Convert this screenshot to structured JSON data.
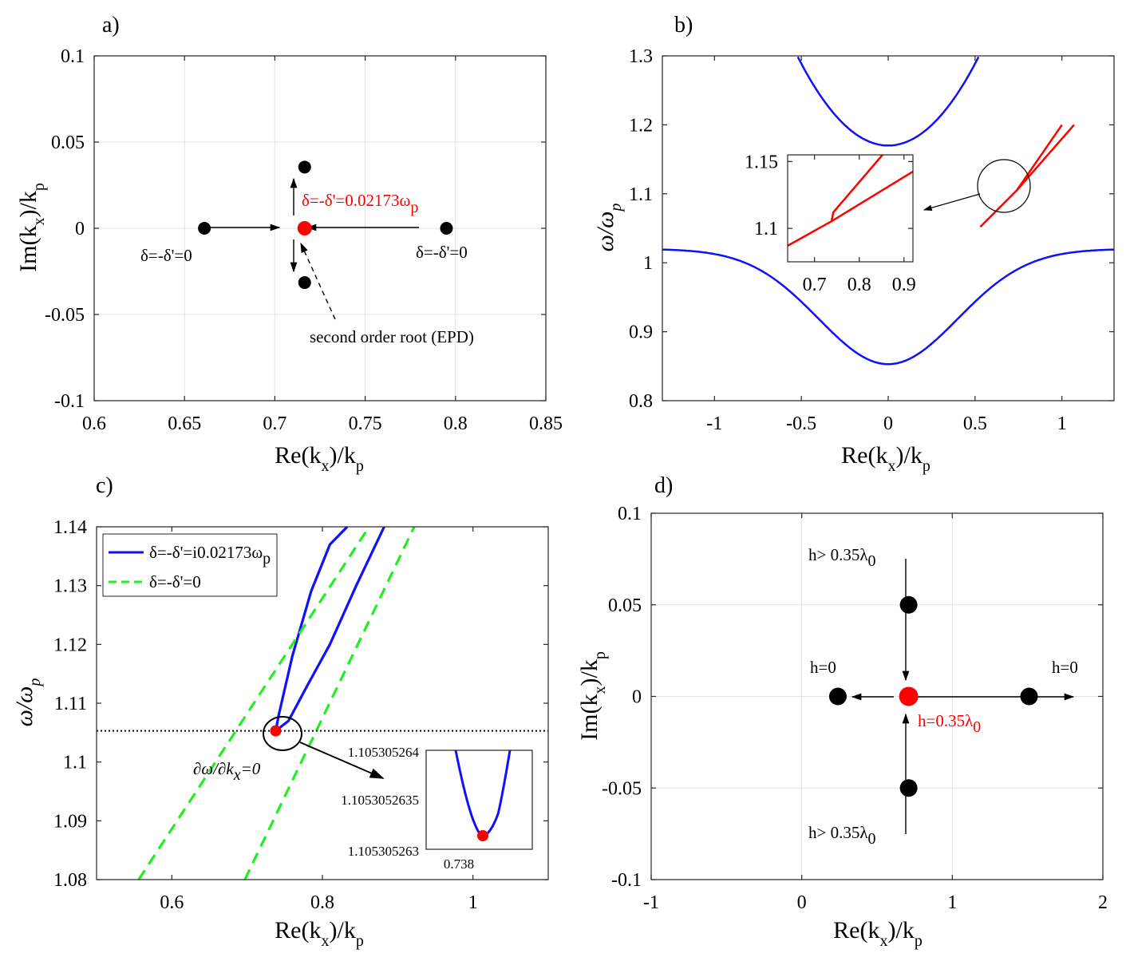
{
  "chart_data": [
    {
      "panel": "a)",
      "type": "scatter",
      "xlabel": {
        "main": "Re(k",
        "sub1": "x",
        "mid": ")/k",
        "sub2": "p"
      },
      "ylabel": {
        "main": "Im(k",
        "sub1": "x",
        "mid": ")/k",
        "sub2": "p"
      },
      "xlim": [
        0.6,
        0.85
      ],
      "ylim": [
        -0.1,
        0.1
      ],
      "xticks": [
        "0.6",
        "0.65",
        "0.7",
        "0.75",
        "0.8",
        "0.85"
      ],
      "yticks": [
        "0.1",
        "0.05",
        "0",
        "-0.05",
        "-0.1"
      ],
      "grid": true,
      "points": [
        {
          "x": 0.661,
          "y": 0.0,
          "color": "#000000"
        },
        {
          "x": 0.795,
          "y": 0.0,
          "color": "#000000"
        },
        {
          "x": 0.7165,
          "y": 0.0,
          "color": "#ff0000"
        },
        {
          "x": 0.7165,
          "y": 0.0355,
          "color": "#000000"
        },
        {
          "x": 0.7165,
          "y": -0.0315,
          "color": "#000000"
        }
      ],
      "annotations": [
        {
          "text": "δ=-δ'=0",
          "color": "#000000"
        },
        {
          "text": "δ=-δ'=0",
          "color": "#000000"
        },
        {
          "text": "δ=-δ'=0.02173ω",
          "sub": "p",
          "color": "#ff0000"
        },
        {
          "text": "second order root (EPD)",
          "color": "#000000"
        }
      ]
    },
    {
      "panel": "b)",
      "type": "line",
      "xlabel": {
        "main": "Re(k",
        "sub1": "x",
        "mid": ")/k",
        "sub2": "p"
      },
      "ylabel": {
        "main": "ω/ω",
        "sub1": "p"
      },
      "xlim": [
        -1.3,
        1.3
      ],
      "ylim": [
        0.8,
        1.3
      ],
      "xticks": [
        "-1",
        "-0.5",
        "0",
        "0.5",
        "1"
      ],
      "yticks": [
        "1.3",
        "1.2",
        "1.1",
        "1",
        "0.9",
        "0.8"
      ],
      "grid": false,
      "series": [
        {
          "name": "upper band",
          "color": "#1010ff",
          "formula": "1.17 + 0.475*x^2"
        },
        {
          "name": "lower band",
          "color": "#1010ff",
          "formula": "0.853 + 0.167*(1 - exp(-x^2/0.32))"
        },
        {
          "name": "red branch 1",
          "color": "#ff0000",
          "x": [
            0.53,
            0.74,
            1.07
          ],
          "y": [
            1.052,
            1.105,
            1.2
          ]
        },
        {
          "name": "red branch 2",
          "color": "#ff0000",
          "x": [
            0.74,
            1.0
          ],
          "y": [
            1.105,
            1.2
          ]
        }
      ],
      "inset": {
        "xlim": [
          0.64,
          0.92
        ],
        "ylim": [
          1.075,
          1.155
        ],
        "xticks": [
          "0.7",
          "0.8",
          "0.9"
        ],
        "yticks": [
          "1.15",
          "1.1"
        ],
        "series": [
          {
            "color": "#ff0000",
            "x": [
              0.64,
              0.738,
              0.92
            ],
            "y": [
              1.087,
              1.1053,
              1.1425
            ]
          },
          {
            "color": "#ff0000",
            "x": [
              0.738,
              0.742,
              0.852
            ],
            "y": [
              1.1053,
              1.112,
              1.155
            ]
          }
        ]
      }
    },
    {
      "panel": "c)",
      "type": "line",
      "xlabel": {
        "main": "Re(k",
        "sub1": "x",
        "mid": ")/k",
        "sub2": "p"
      },
      "ylabel": {
        "main": "ω/ω",
        "sub1": "p"
      },
      "xlim": [
        0.5,
        1.1
      ],
      "ylim": [
        1.08,
        1.14
      ],
      "xticks": [
        "0.6",
        "0.8",
        "1"
      ],
      "yticks": [
        "1.14",
        "1.13",
        "1.12",
        "1.11",
        "1.1",
        "1.09",
        "1.08"
      ],
      "grid": false,
      "legend": [
        {
          "label": "δ=-δ'=i0.02173ω",
          "sub": "p",
          "color": "#1010ff",
          "dash": false
        },
        {
          "label": "δ=-δ'=0",
          "sub": "",
          "color": "#22ee22",
          "dash": true
        }
      ],
      "series": [
        {
          "name": "blue left",
          "color": "#1010ff",
          "x": [
            0.738,
            0.742,
            0.76,
            0.785,
            0.81,
            0.833
          ],
          "y": [
            1.1053,
            1.108,
            1.118,
            1.129,
            1.137,
            1.14
          ]
        },
        {
          "name": "blue right",
          "color": "#1010ff",
          "x": [
            0.738,
            0.755,
            0.78,
            0.81,
            0.845,
            0.882
          ],
          "y": [
            1.1053,
            1.107,
            1.113,
            1.12,
            1.13,
            1.14
          ]
        },
        {
          "name": "green left",
          "color": "#22ee22",
          "x": [
            0.556,
            0.862
          ],
          "y": [
            1.08,
            1.14
          ]
        },
        {
          "name": "green right",
          "color": "#22ee22",
          "x": [
            0.697,
            0.922
          ],
          "y": [
            1.08,
            1.14
          ]
        }
      ],
      "hline": {
        "y": 1.1053,
        "style": "dotted"
      },
      "ep_point": {
        "x": 0.738,
        "y": 1.1053
      },
      "annotation": {
        "main": "∂ω/∂k",
        "sub": "x",
        "tail": "=0"
      },
      "inset": {
        "yticks": [
          "1.105305264",
          "1.1053052635",
          "1.105305263"
        ],
        "xticks": [
          "0.738"
        ]
      }
    },
    {
      "panel": "d)",
      "type": "scatter",
      "xlabel": {
        "main": "Re(k",
        "sub1": "x",
        "mid": ")/k",
        "sub2": "p"
      },
      "ylabel": {
        "main": "Im(k",
        "sub1": "x",
        "mid": ")/k",
        "sub2": "p"
      },
      "xlim": [
        -1,
        2
      ],
      "ylim": [
        -0.1,
        0.1
      ],
      "xticks": [
        "-1",
        "0",
        "1",
        "2"
      ],
      "yticks": [
        "0.1",
        "0.05",
        "0",
        "-0.05",
        "-0.1"
      ],
      "grid": true,
      "points": [
        {
          "x": 0.24,
          "y": 0.0,
          "color": "#000000"
        },
        {
          "x": 1.51,
          "y": 0.0,
          "color": "#000000"
        },
        {
          "x": 0.71,
          "y": 0.0,
          "color": "#ff0000"
        },
        {
          "x": 0.71,
          "y": 0.05,
          "color": "#000000"
        },
        {
          "x": 0.71,
          "y": -0.05,
          "color": "#000000"
        }
      ],
      "annotations": [
        {
          "text": "h=0",
          "color": "#000000"
        },
        {
          "text": "h=0",
          "color": "#000000"
        },
        {
          "text": "h=0.35λ",
          "sub": "0",
          "color": "#ff0000"
        },
        {
          "text": "h> 0.35λ",
          "sub": "0",
          "color": "#000000"
        },
        {
          "text": "h> 0.35λ",
          "sub": "0",
          "color": "#000000"
        }
      ]
    }
  ]
}
